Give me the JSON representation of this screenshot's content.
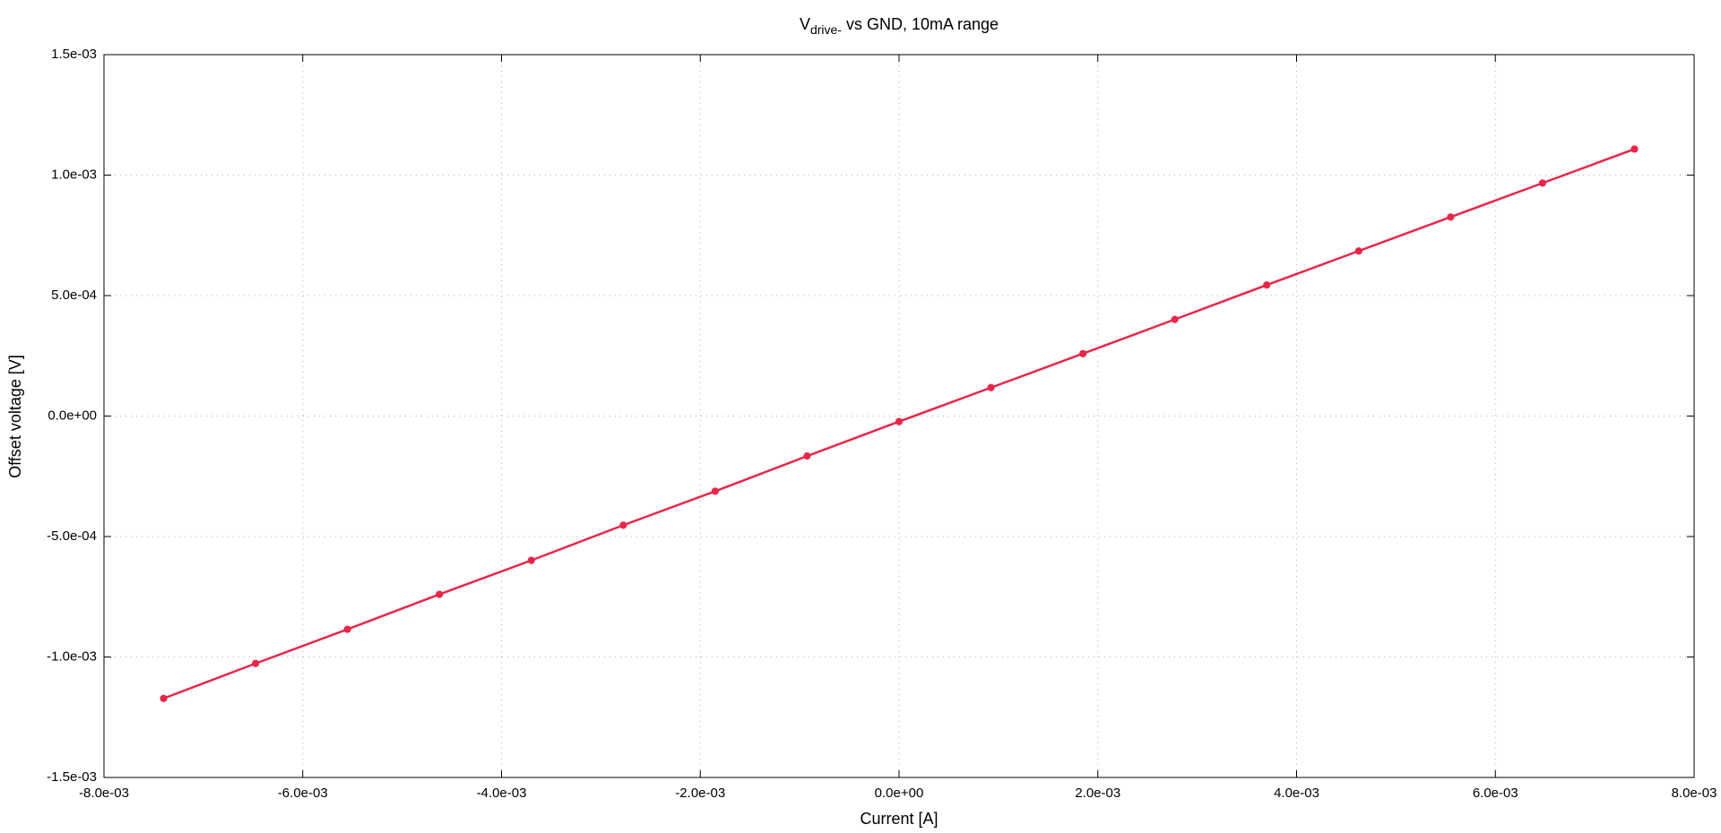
{
  "chart_data": {
    "type": "line",
    "title": "V",
    "title_subscript": "drive-",
    "title_rest": " vs GND, 10mA range",
    "xlabel": "Current [A]",
    "ylabel": "Offset voltage [V]",
    "color": "#e8264a",
    "grid": true,
    "x": [
      -0.0074,
      -0.006475,
      -0.00555,
      -0.004625,
      -0.0037,
      -0.002775,
      -0.00185,
      -0.000925,
      0,
      0.000925,
      0.00185,
      0.002775,
      0.0037,
      0.004625,
      0.00555,
      0.006475,
      0.0074
    ],
    "values": [
      -0.001172,
      -0.001027,
      -0.000885,
      -0.00074,
      -0.000599,
      -0.000453,
      -0.000312,
      -0.000166,
      -2.3e-05,
      0.000118,
      0.000259,
      0.000401,
      0.000544,
      0.000685,
      0.000826,
      0.000967,
      0.001108
    ],
    "xlim": [
      -0.008,
      0.008
    ],
    "xticks": [
      {
        "value": -0.008,
        "label": "-8.0e-03"
      },
      {
        "value": -0.006,
        "label": "-6.0e-03"
      },
      {
        "value": -0.004,
        "label": "-4.0e-03"
      },
      {
        "value": -0.002,
        "label": "-2.0e-03"
      },
      {
        "value": 0,
        "label": "0.0e+00"
      },
      {
        "value": 0.002,
        "label": "2.0e-03"
      },
      {
        "value": 0.004,
        "label": "4.0e-03"
      },
      {
        "value": 0.006,
        "label": "6.0e-03"
      },
      {
        "value": 0.008,
        "label": "8.0e-03"
      }
    ],
    "ylim": [
      -0.0015,
      0.0015
    ],
    "yticks": [
      {
        "value": -0.0015,
        "label": "-1.5e-03"
      },
      {
        "value": -0.001,
        "label": "-1.0e-03"
      },
      {
        "value": -0.0005,
        "label": "-5.0e-04"
      },
      {
        "value": 0,
        "label": "0.0e+00"
      },
      {
        "value": 0.0005,
        "label": "5.0e-04"
      },
      {
        "value": 0.001,
        "label": "1.0e-03"
      },
      {
        "value": 0.0015,
        "label": "1.5e-03"
      }
    ]
  }
}
